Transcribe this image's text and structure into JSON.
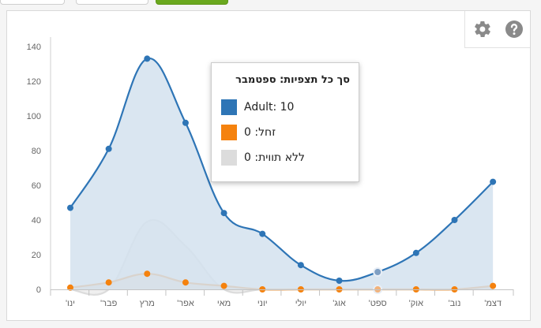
{
  "chart_data": {
    "type": "area",
    "categories": [
      "ינו'",
      "פבר'",
      "מרץ",
      "אפר'",
      "מאי",
      "יוני",
      "יולי",
      "אוג'",
      "ספט'",
      "אוק'",
      "נוב'",
      "דצמ'"
    ],
    "series": [
      {
        "name": "Adult",
        "values": [
          47,
          81,
          133,
          96,
          44,
          32,
          14,
          5,
          10,
          21,
          40,
          62
        ],
        "color": "#2e75b6",
        "fill": "#d4e2ef"
      },
      {
        "name": "זחל",
        "values": [
          1,
          4,
          9,
          4,
          2,
          0,
          0,
          0,
          0,
          0,
          0,
          2
        ],
        "color": "#f5820e",
        "fill": "#efd5be"
      },
      {
        "name": "ללא תווית",
        "values": [
          0,
          0,
          39,
          25,
          0,
          0,
          0,
          0,
          0,
          0,
          0,
          0
        ],
        "color": "#dcdcdc",
        "fill": "#ececec"
      }
    ],
    "ylim": [
      0,
      140
    ],
    "yticks": [
      0,
      20,
      40,
      60,
      80,
      100,
      120,
      140
    ],
    "grid": false,
    "highlight_index": 8
  },
  "tooltip": {
    "title": "סך כל תצפיות: ספטמבר",
    "rows": [
      {
        "label": "Adult: 10",
        "color": "#2e75b6"
      },
      {
        "label": "זחל: 0",
        "color": "#f5820e"
      },
      {
        "label": "ללא תווית: 0",
        "color": "#dcdcdc"
      }
    ]
  },
  "toolbox": {
    "settings_icon": "gear-icon",
    "help_icon": "help-icon"
  }
}
